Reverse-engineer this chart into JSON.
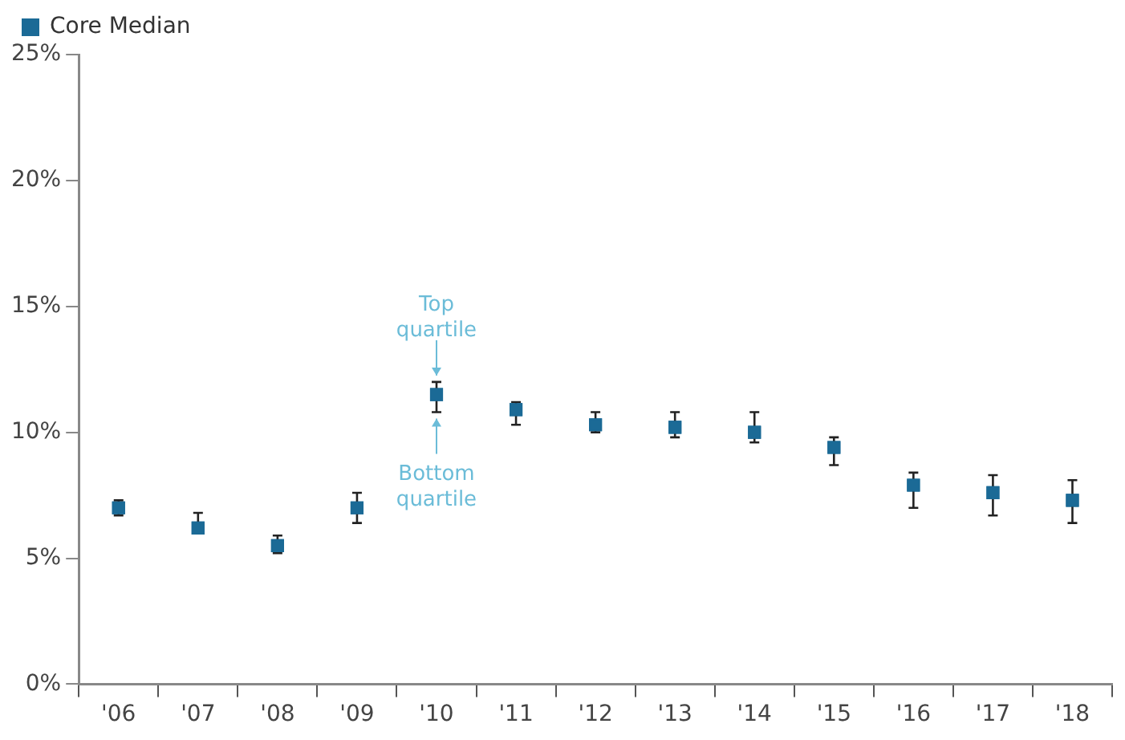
{
  "chart_data": {
    "type": "scatter",
    "categories": [
      "'06",
      "'07",
      "'08",
      "'09",
      "'10",
      "'11",
      "'12",
      "'13",
      "'14",
      "'15",
      "'16",
      "'17",
      "'18"
    ],
    "series": [
      {
        "name": "Core Median",
        "color": "#1b6a96",
        "values": [
          7.0,
          6.2,
          5.5,
          7.0,
          11.5,
          10.9,
          10.3,
          10.2,
          10.0,
          9.4,
          7.9,
          7.6,
          7.3
        ],
        "errors": [
          [
            6.7,
            7.3
          ],
          [
            6.0,
            6.8
          ],
          [
            5.2,
            5.9
          ],
          [
            6.4,
            7.6
          ],
          [
            10.8,
            12.0
          ],
          [
            10.3,
            11.2
          ],
          [
            10.0,
            10.8
          ],
          [
            9.8,
            10.8
          ],
          [
            9.6,
            10.8
          ],
          [
            8.7,
            9.8
          ],
          [
            7.0,
            8.4
          ],
          [
            6.7,
            8.3
          ],
          [
            6.4,
            8.1
          ]
        ]
      }
    ],
    "ylim": [
      0,
      25
    ],
    "yticks": [
      {
        "value": 0,
        "label": "0%"
      },
      {
        "value": 5,
        "label": "5%"
      },
      {
        "value": 10,
        "label": "10%"
      },
      {
        "value": 15,
        "label": "15%"
      },
      {
        "value": 20,
        "label": "20%"
      },
      {
        "value": 25,
        "label": "25%"
      }
    ],
    "annotations": [
      {
        "text": "Top quartile",
        "x": "'10",
        "y": 12.0
      },
      {
        "text": "Bottom quartile",
        "x": "'10",
        "y": 10.8
      }
    ],
    "marker": "square",
    "legend": "top left",
    "grid": false
  }
}
